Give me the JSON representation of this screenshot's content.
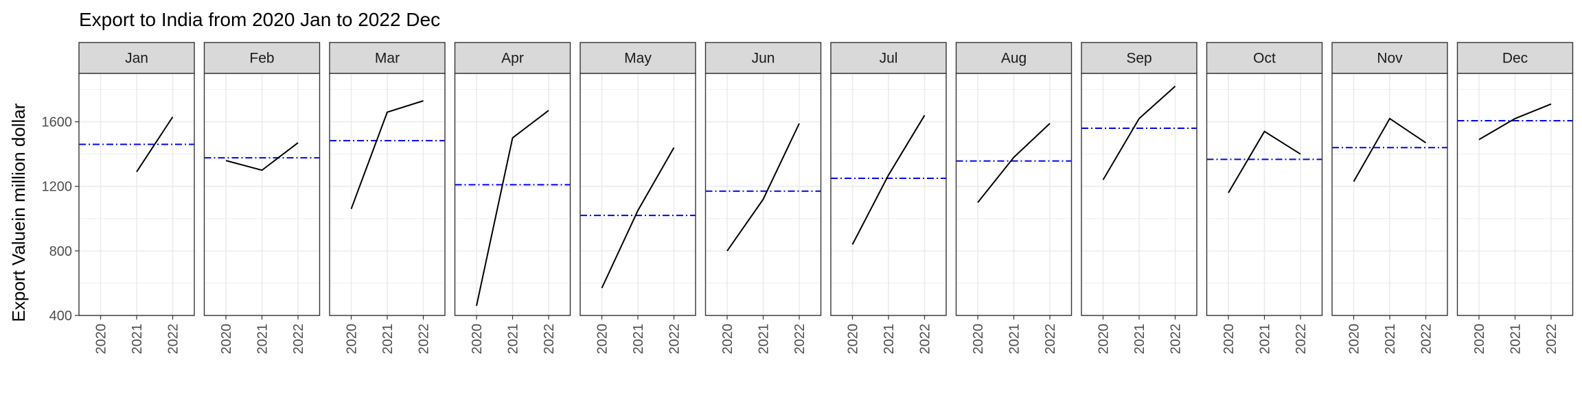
{
  "chart_data": {
    "type": "line",
    "title": "Export to India from 2020 Jan to 2022 Dec",
    "xlabel": "",
    "ylabel": "Export Valuein million dollar",
    "x": [
      "2020",
      "2021",
      "2022"
    ],
    "ylim": [
      400,
      1900
    ],
    "yticks": [
      400,
      800,
      1200,
      1600
    ],
    "grid": true,
    "legend": "none",
    "colors": {
      "line": "#000000",
      "mean_line": "#0000ff",
      "strip_fill": "#d9d9d9",
      "grid": "#ebebeb"
    },
    "facets": [
      {
        "label": "Jan",
        "values": [
          null,
          1290,
          1630
        ],
        "mean": 1460
      },
      {
        "label": "Feb",
        "values": [
          1360,
          1300,
          1470
        ],
        "mean": 1377
      },
      {
        "label": "Mar",
        "values": [
          1060,
          1660,
          1730
        ],
        "mean": 1483
      },
      {
        "label": "Apr",
        "values": [
          460,
          1500,
          1670
        ],
        "mean": 1210
      },
      {
        "label": "May",
        "values": [
          570,
          1050,
          1440
        ],
        "mean": 1020
      },
      {
        "label": "Jun",
        "values": [
          800,
          1120,
          1590
        ],
        "mean": 1170
      },
      {
        "label": "Jul",
        "values": [
          840,
          1270,
          1640
        ],
        "mean": 1250
      },
      {
        "label": "Aug",
        "values": [
          1100,
          1380,
          1590
        ],
        "mean": 1357
      },
      {
        "label": "Sep",
        "values": [
          1240,
          1620,
          1820
        ],
        "mean": 1560
      },
      {
        "label": "Oct",
        "values": [
          1160,
          1540,
          1400
        ],
        "mean": 1367
      },
      {
        "label": "Nov",
        "values": [
          1230,
          1620,
          1470
        ],
        "mean": 1440
      },
      {
        "label": "Dec",
        "values": [
          1490,
          1620,
          1710
        ],
        "mean": 1607
      }
    ]
  }
}
